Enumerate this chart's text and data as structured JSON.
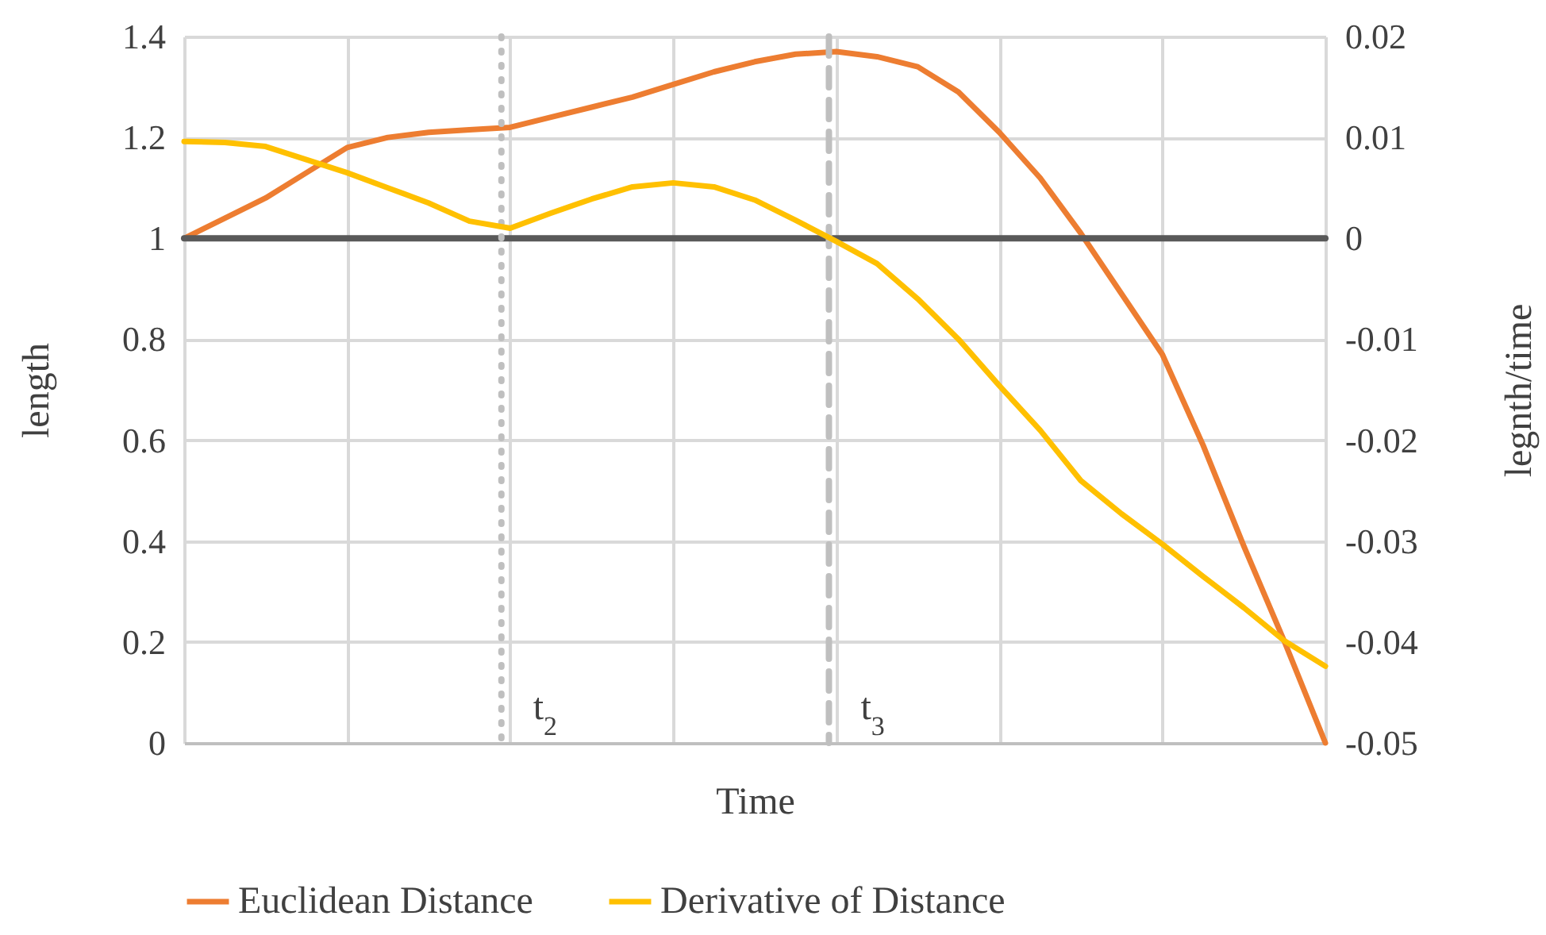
{
  "chart_data": {
    "type": "line",
    "xlabel": "Time",
    "ylabel": "length",
    "y2label": "legnth/time",
    "categories": [
      null,
      null,
      null,
      null,
      null,
      null,
      null,
      null,
      null,
      null,
      null,
      null,
      null,
      null,
      null,
      null,
      null,
      null,
      null,
      null,
      null,
      null,
      null,
      null,
      null,
      null,
      null,
      null,
      null
    ],
    "ylim": [
      0,
      1.4
    ],
    "yticks": [
      0,
      0.2,
      0.4,
      0.6,
      0.8,
      1,
      1.2,
      1.4
    ],
    "y2lim": [
      -0.05,
      0.02
    ],
    "y2ticks": [
      -0.05,
      -0.04,
      -0.03,
      -0.02,
      -0.01,
      0,
      0.01,
      0.02
    ],
    "grid": true,
    "legend": "bottom",
    "marker": "none",
    "line_style": "solid",
    "series": [
      {
        "name": "Euclidean Distance",
        "color": "#ed7d31",
        "values": [
          1.0,
          1.04,
          1.08,
          1.13,
          1.18,
          1.2,
          1.21,
          1.215,
          1.22,
          1.24,
          1.26,
          1.28,
          1.305,
          1.33,
          1.35,
          1.365,
          1.37,
          1.36,
          1.34,
          1.29,
          1.21,
          1.12,
          1.01,
          0.89,
          0.77,
          0.59,
          0.39,
          0.2,
          0
        ]
      },
      {
        "name": "Derivative of Distance",
        "color": "#ffc000",
        "axis": "y2",
        "values": [
          0.0096,
          0.0095,
          0.0091,
          0.0078,
          0.0065,
          0.005,
          0.0035,
          0.0017,
          0.001,
          0.0025,
          0.0039,
          0.0051,
          0.0055,
          0.0051,
          0.0038,
          0.0018,
          -0.0003,
          -0.0025,
          -0.006,
          -0.01,
          -0.0146,
          -0.019,
          -0.024,
          -0.0273,
          -0.0303,
          -0.0335,
          -0.0366,
          -0.0399,
          -0.0424
        ]
      }
    ],
    "ref_lines": [
      {
        "axis": "y",
        "value": 1,
        "color": "#595959"
      }
    ],
    "annotations": [
      "t$_{2}$",
      "t$_{3}$"
    ]
  }
}
